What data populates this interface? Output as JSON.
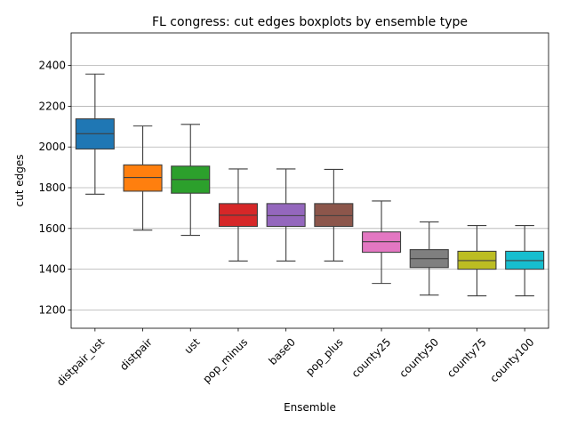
{
  "chart_data": {
    "type": "boxplot",
    "title": "FL congress: cut edges boxplots by ensemble type",
    "xlabel": "Ensemble",
    "ylabel": "cut edges",
    "ylim": [
      1110,
      2560
    ],
    "yticks": [
      1200,
      1400,
      1600,
      1800,
      2000,
      2200,
      2400
    ],
    "grid": "horizontal",
    "categories": [
      "distpair_ust",
      "distpair",
      "ust",
      "pop_minus",
      "base0",
      "pop_plus",
      "county25",
      "county50",
      "county75",
      "county100"
    ],
    "series": [
      {
        "category": "distpair_ust",
        "whisker_low": 1768,
        "q1": 1990,
        "median": 2065,
        "q3": 2138,
        "whisker_high": 2358,
        "color": "#1f77b4"
      },
      {
        "category": "distpair",
        "whisker_low": 1592,
        "q1": 1783,
        "median": 1850,
        "q3": 1912,
        "whisker_high": 2103,
        "color": "#ff7f0e"
      },
      {
        "category": "ust",
        "whisker_low": 1566,
        "q1": 1773,
        "median": 1840,
        "q3": 1906,
        "whisker_high": 2111,
        "color": "#2ca02c"
      },
      {
        "category": "pop_minus",
        "whisker_low": 1440,
        "q1": 1610,
        "median": 1665,
        "q3": 1722,
        "whisker_high": 1892,
        "color": "#d62728"
      },
      {
        "category": "base0",
        "whisker_low": 1440,
        "q1": 1610,
        "median": 1663,
        "q3": 1722,
        "whisker_high": 1892,
        "color": "#9467bd"
      },
      {
        "category": "pop_plus",
        "whisker_low": 1440,
        "q1": 1610,
        "median": 1663,
        "q3": 1722,
        "whisker_high": 1890,
        "color": "#8c564b"
      },
      {
        "category": "county25",
        "whisker_low": 1330,
        "q1": 1483,
        "median": 1535,
        "q3": 1583,
        "whisker_high": 1735,
        "color": "#e377c2"
      },
      {
        "category": "county50",
        "whisker_low": 1273,
        "q1": 1408,
        "median": 1452,
        "q3": 1496,
        "whisker_high": 1632,
        "color": "#7f7f7f"
      },
      {
        "category": "county75",
        "whisker_low": 1269,
        "q1": 1400,
        "median": 1442,
        "q3": 1488,
        "whisker_high": 1614,
        "color": "#bcbd22"
      },
      {
        "category": "county100",
        "whisker_low": 1269,
        "q1": 1400,
        "median": 1442,
        "q3": 1488,
        "whisker_high": 1614,
        "color": "#17becf"
      }
    ]
  }
}
